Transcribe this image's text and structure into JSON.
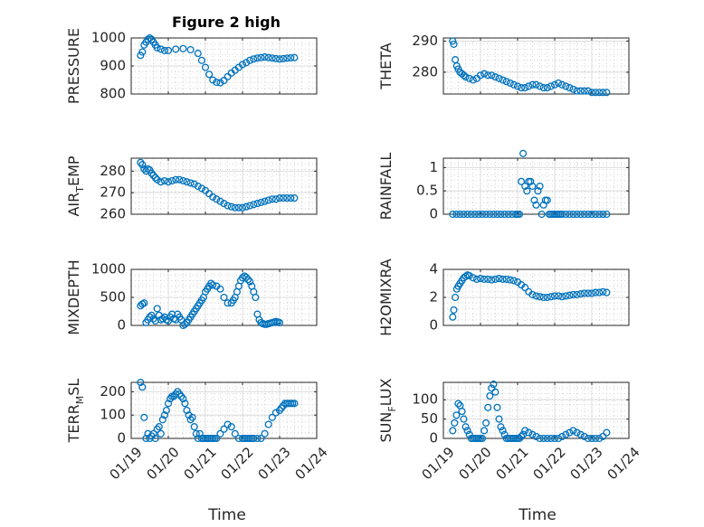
{
  "figure": {
    "title": "Figure 2 high",
    "xlabel": "Time"
  },
  "chart_data": [
    {
      "type": "scatter",
      "ylabel": "PRESSURE",
      "ylim": [
        800,
        1000
      ],
      "yticks": [
        800,
        900,
        1000
      ],
      "xlim": [
        0,
        5
      ],
      "xticks": [
        0,
        1,
        2,
        3,
        4,
        5
      ],
      "xticklabels": [
        "01/19",
        "01/20",
        "01/21",
        "01/22",
        "01/23",
        "01/24"
      ],
      "show_xticklabels": false,
      "grid": "on",
      "marker_color": "#0072BD",
      "x": [
        0.25,
        0.3,
        0.35,
        0.4,
        0.45,
        0.5,
        0.55,
        0.6,
        0.65,
        0.7,
        0.8,
        0.9,
        1.0,
        1.2,
        1.4,
        1.6,
        1.8,
        1.9,
        2.0,
        2.1,
        2.2,
        2.3,
        2.4,
        2.5,
        2.6,
        2.7,
        2.8,
        2.9,
        3.0,
        3.1,
        3.2,
        3.3,
        3.4,
        3.5,
        3.6,
        3.7,
        3.8,
        3.9,
        4.0,
        4.1,
        4.2,
        4.3,
        4.4
      ],
      "y": [
        938,
        950,
        975,
        985,
        995,
        1000,
        995,
        985,
        975,
        965,
        960,
        955,
        955,
        960,
        962,
        958,
        945,
        920,
        895,
        870,
        850,
        842,
        840,
        848,
        862,
        875,
        885,
        895,
        905,
        912,
        920,
        925,
        928,
        930,
        932,
        930,
        928,
        926,
        925,
        926,
        928,
        929,
        930
      ]
    },
    {
      "type": "scatter",
      "ylabel": "THETA",
      "ylim": [
        273,
        291
      ],
      "yticks": [
        280,
        290
      ],
      "xlim": [
        0,
        5
      ],
      "xticks": [
        0,
        1,
        2,
        3,
        4,
        5
      ],
      "xticklabels": [
        "01/19",
        "01/20",
        "01/21",
        "01/22",
        "01/23",
        "01/24"
      ],
      "show_xticklabels": false,
      "grid": "on",
      "marker_color": "#0072BD",
      "x": [
        0.25,
        0.28,
        0.32,
        0.36,
        0.4,
        0.45,
        0.5,
        0.55,
        0.6,
        0.7,
        0.8,
        0.9,
        1.0,
        1.1,
        1.2,
        1.3,
        1.4,
        1.5,
        1.6,
        1.7,
        1.8,
        1.9,
        2.0,
        2.1,
        2.2,
        2.3,
        2.4,
        2.5,
        2.6,
        2.7,
        2.8,
        2.9,
        3.0,
        3.1,
        3.2,
        3.3,
        3.4,
        3.5,
        3.6,
        3.7,
        3.8,
        3.9,
        4.0,
        4.1,
        4.2,
        4.3,
        4.4
      ],
      "y": [
        290,
        289,
        284,
        282,
        281,
        280,
        279.5,
        279,
        278.5,
        278,
        277.5,
        278,
        279,
        279.5,
        279,
        279,
        278.5,
        278,
        277.5,
        277,
        276.5,
        276,
        275.5,
        275,
        275,
        275.5,
        276,
        276,
        275.5,
        275,
        275,
        275.5,
        276,
        276.5,
        276,
        275.5,
        275,
        274.5,
        274,
        274,
        274,
        274,
        273.5,
        273.5,
        273.5,
        273.5,
        273.5
      ]
    },
    {
      "type": "scatter",
      "ylabel_main": "AIR",
      "ylabel_sub": "T",
      "ylabel_rest": "EMP",
      "ylim": [
        260,
        286
      ],
      "yticks": [
        260,
        270,
        280
      ],
      "xlim": [
        0,
        5
      ],
      "xticks": [
        0,
        1,
        2,
        3,
        4,
        5
      ],
      "xticklabels": [
        "01/19",
        "01/20",
        "01/21",
        "01/22",
        "01/23",
        "01/24"
      ],
      "show_xticklabels": false,
      "grid": "on",
      "marker_color": "#0072BD",
      "x": [
        0.25,
        0.3,
        0.35,
        0.4,
        0.45,
        0.5,
        0.55,
        0.6,
        0.65,
        0.7,
        0.8,
        0.9,
        1.0,
        1.1,
        1.2,
        1.3,
        1.4,
        1.5,
        1.6,
        1.7,
        1.8,
        1.9,
        2.0,
        2.1,
        2.2,
        2.3,
        2.4,
        2.5,
        2.6,
        2.7,
        2.8,
        2.9,
        3.0,
        3.1,
        3.2,
        3.3,
        3.4,
        3.5,
        3.6,
        3.7,
        3.8,
        3.9,
        4.0,
        4.1,
        4.2,
        4.3,
        4.4
      ],
      "y": [
        284,
        283,
        281,
        280,
        281,
        280.5,
        279,
        278,
        277,
        276,
        275,
        275.5,
        275,
        275.5,
        276,
        276,
        275.5,
        275,
        274.5,
        274,
        273,
        272,
        271,
        269.5,
        268,
        267,
        266,
        265,
        264,
        263.5,
        263,
        263,
        263,
        263.5,
        264,
        264.5,
        265,
        265.5,
        266,
        266.5,
        267,
        267,
        267.5,
        267.5,
        267.5,
        267.5,
        267.5
      ]
    },
    {
      "type": "scatter",
      "ylabel": "RAINFALL",
      "ylim": [
        0,
        1.2
      ],
      "yticks": [
        0,
        0.5,
        1
      ],
      "xlim": [
        0,
        5
      ],
      "xticks": [
        0,
        1,
        2,
        3,
        4,
        5
      ],
      "xticklabels": [
        "01/19",
        "01/20",
        "01/21",
        "01/22",
        "01/23",
        "01/24"
      ],
      "show_xticklabels": false,
      "grid": "on",
      "marker_color": "#0072BD",
      "x": [
        0.25,
        0.35,
        0.45,
        0.55,
        0.65,
        0.75,
        0.85,
        0.95,
        1.05,
        1.15,
        1.25,
        1.35,
        1.45,
        1.55,
        1.65,
        1.75,
        1.85,
        1.95,
        2.0,
        2.05,
        2.1,
        2.15,
        2.2,
        2.25,
        2.3,
        2.35,
        2.4,
        2.45,
        2.5,
        2.55,
        2.6,
        2.65,
        2.7,
        2.75,
        2.8,
        2.85,
        2.9,
        2.95,
        3.0,
        3.05,
        3.1,
        3.15,
        3.2,
        3.3,
        3.4,
        3.5,
        3.6,
        3.7,
        3.8,
        3.9,
        4.0,
        4.1,
        4.2,
        4.3,
        4.4
      ],
      "y": [
        0,
        0,
        0,
        0,
        0,
        0,
        0,
        0,
        0,
        0,
        0,
        0,
        0,
        0,
        0,
        0,
        0,
        0,
        0,
        0,
        0.7,
        1.3,
        0.6,
        0.5,
        0.7,
        0.7,
        0.6,
        0.3,
        0.2,
        0.5,
        0.6,
        0,
        0.2,
        0.3,
        0.3,
        0,
        0,
        0,
        0,
        0,
        0,
        0,
        0,
        0,
        0,
        0,
        0,
        0,
        0,
        0,
        0,
        0,
        0,
        0,
        0
      ]
    },
    {
      "type": "scatter",
      "ylabel": "MIXDEPTH",
      "ylim": [
        0,
        1000
      ],
      "yticks": [
        0,
        500,
        1000
      ],
      "xlim": [
        0,
        5
      ],
      "xticks": [
        0,
        1,
        2,
        3,
        4,
        5
      ],
      "xticklabels": [
        "01/19",
        "01/20",
        "01/21",
        "01/22",
        "01/23",
        "01/24"
      ],
      "show_xticklabels": false,
      "grid": "on",
      "marker_color": "#0072BD",
      "x": [
        0.25,
        0.3,
        0.35,
        0.4,
        0.45,
        0.5,
        0.55,
        0.6,
        0.65,
        0.7,
        0.75,
        0.8,
        0.85,
        0.9,
        0.95,
        1.0,
        1.05,
        1.1,
        1.15,
        1.2,
        1.25,
        1.3,
        1.35,
        1.4,
        1.45,
        1.5,
        1.55,
        1.6,
        1.65,
        1.7,
        1.75,
        1.8,
        1.85,
        1.9,
        1.95,
        2.0,
        2.05,
        2.1,
        2.15,
        2.2,
        2.3,
        2.4,
        2.5,
        2.6,
        2.7,
        2.75,
        2.8,
        2.85,
        2.9,
        2.95,
        3.0,
        3.05,
        3.1,
        3.15,
        3.2,
        3.25,
        3.3,
        3.35,
        3.4,
        3.45,
        3.5,
        3.55,
        3.6,
        3.65,
        3.7,
        3.75,
        3.8,
        3.85,
        3.9,
        3.95,
        4.0
      ],
      "y": [
        350,
        380,
        400,
        50,
        100,
        150,
        180,
        120,
        80,
        300,
        180,
        100,
        120,
        150,
        100,
        80,
        150,
        200,
        120,
        100,
        200,
        150,
        100,
        0,
        20,
        50,
        100,
        150,
        200,
        250,
        300,
        350,
        400,
        450,
        500,
        600,
        650,
        700,
        750,
        720,
        700,
        650,
        500,
        400,
        400,
        450,
        500,
        600,
        700,
        800,
        850,
        880,
        860,
        820,
        780,
        700,
        600,
        500,
        200,
        100,
        50,
        30,
        20,
        20,
        30,
        40,
        50,
        60,
        70,
        60,
        50
      ]
    },
    {
      "type": "scatter",
      "ylabel": "H2OMIXRA",
      "ylim": [
        0,
        4
      ],
      "yticks": [
        0,
        2,
        4
      ],
      "xlim": [
        0,
        5
      ],
      "xticks": [
        0,
        1,
        2,
        3,
        4,
        5
      ],
      "xticklabels": [
        "01/19",
        "01/20",
        "01/21",
        "01/22",
        "01/23",
        "01/24"
      ],
      "show_xticklabels": false,
      "grid": "on",
      "marker_color": "#0072BD",
      "x": [
        0.25,
        0.28,
        0.32,
        0.36,
        0.4,
        0.45,
        0.5,
        0.55,
        0.6,
        0.65,
        0.7,
        0.8,
        0.9,
        1.0,
        1.1,
        1.2,
        1.3,
        1.4,
        1.5,
        1.6,
        1.7,
        1.8,
        1.9,
        2.0,
        2.1,
        2.2,
        2.3,
        2.4,
        2.5,
        2.6,
        2.7,
        2.8,
        2.9,
        3.0,
        3.1,
        3.2,
        3.3,
        3.4,
        3.5,
        3.6,
        3.7,
        3.8,
        3.9,
        4.0,
        4.1,
        4.2,
        4.3,
        4.4
      ],
      "y": [
        0.6,
        1.1,
        2.0,
        2.6,
        2.8,
        3.0,
        3.2,
        3.4,
        3.5,
        3.6,
        3.55,
        3.4,
        3.3,
        3.35,
        3.3,
        3.3,
        3.25,
        3.3,
        3.35,
        3.3,
        3.3,
        3.25,
        3.2,
        3.1,
        2.9,
        2.7,
        2.4,
        2.2,
        2.1,
        2.05,
        2.0,
        2.0,
        2.05,
        2.1,
        2.1,
        2.05,
        2.1,
        2.15,
        2.2,
        2.2,
        2.25,
        2.3,
        2.3,
        2.3,
        2.35,
        2.35,
        2.4,
        2.35
      ]
    },
    {
      "type": "scatter",
      "ylabel_main": "TERR",
      "ylabel_sub": "M",
      "ylabel_rest": "SL",
      "ylim": [
        0,
        240
      ],
      "yticks": [
        0,
        100,
        200
      ],
      "xlim": [
        0,
        5
      ],
      "xticks": [
        0,
        1,
        2,
        3,
        4,
        5
      ],
      "xticklabels": [
        "01/19",
        "01/20",
        "01/21",
        "01/22",
        "01/23",
        "01/24"
      ],
      "show_xticklabels": true,
      "grid": "on",
      "marker_color": "#0072BD",
      "x": [
        0.25,
        0.3,
        0.35,
        0.4,
        0.45,
        0.5,
        0.55,
        0.6,
        0.65,
        0.7,
        0.75,
        0.8,
        0.85,
        0.9,
        0.95,
        1.0,
        1.05,
        1.1,
        1.15,
        1.2,
        1.25,
        1.3,
        1.35,
        1.4,
        1.45,
        1.5,
        1.55,
        1.6,
        1.65,
        1.7,
        1.75,
        1.8,
        1.85,
        1.9,
        1.95,
        2.0,
        2.05,
        2.1,
        2.15,
        2.2,
        2.25,
        2.3,
        2.4,
        2.5,
        2.6,
        2.7,
        2.8,
        2.9,
        3.0,
        3.05,
        3.1,
        3.15,
        3.2,
        3.25,
        3.3,
        3.4,
        3.5,
        3.6,
        3.7,
        3.8,
        3.9,
        4.0,
        4.05,
        4.1,
        4.15,
        4.2,
        4.25,
        4.3,
        4.35,
        4.4
      ],
      "y": [
        240,
        220,
        90,
        0,
        20,
        0,
        10,
        20,
        0,
        40,
        50,
        20,
        80,
        100,
        120,
        150,
        170,
        180,
        180,
        190,
        200,
        190,
        180,
        170,
        150,
        120,
        100,
        80,
        90,
        50,
        20,
        0,
        20,
        0,
        0,
        0,
        0,
        0,
        0,
        0,
        0,
        0,
        20,
        40,
        60,
        50,
        20,
        0,
        0,
        0,
        0,
        0,
        0,
        0,
        0,
        0,
        0,
        20,
        60,
        90,
        110,
        120,
        130,
        140,
        150,
        150,
        150,
        150,
        150,
        150
      ]
    },
    {
      "type": "scatter",
      "ylabel_main": "SUN",
      "ylabel_sub": "F",
      "ylabel_rest": "LUX",
      "ylim": [
        0,
        145
      ],
      "yticks": [
        0,
        50,
        100
      ],
      "xlim": [
        0,
        5
      ],
      "xticks": [
        0,
        1,
        2,
        3,
        4,
        5
      ],
      "xticklabels": [
        "01/19",
        "01/20",
        "01/21",
        "01/22",
        "01/23",
        "01/24"
      ],
      "show_xticklabels": true,
      "grid": "on",
      "marker_color": "#0072BD",
      "x": [
        0.25,
        0.3,
        0.35,
        0.4,
        0.45,
        0.5,
        0.55,
        0.6,
        0.65,
        0.7,
        0.75,
        0.8,
        0.85,
        0.9,
        0.95,
        1.0,
        1.05,
        1.1,
        1.15,
        1.2,
        1.25,
        1.3,
        1.35,
        1.4,
        1.45,
        1.5,
        1.55,
        1.6,
        1.65,
        1.7,
        1.75,
        1.8,
        1.85,
        1.9,
        1.95,
        2.0,
        2.05,
        2.1,
        2.15,
        2.2,
        2.3,
        2.4,
        2.5,
        2.6,
        2.7,
        2.8,
        2.9,
        3.0,
        3.1,
        3.2,
        3.3,
        3.4,
        3.5,
        3.6,
        3.7,
        3.8,
        3.9,
        4.0,
        4.1,
        4.2,
        4.3,
        4.4
      ],
      "y": [
        20,
        40,
        60,
        90,
        85,
        70,
        50,
        30,
        20,
        10,
        0,
        0,
        0,
        0,
        0,
        0,
        0,
        20,
        40,
        80,
        110,
        130,
        140,
        120,
        80,
        50,
        30,
        20,
        10,
        0,
        0,
        0,
        0,
        0,
        0,
        0,
        0,
        5,
        10,
        20,
        15,
        10,
        5,
        0,
        0,
        0,
        0,
        0,
        0,
        5,
        10,
        15,
        20,
        15,
        10,
        5,
        0,
        0,
        0,
        0,
        5,
        15
      ]
    }
  ]
}
